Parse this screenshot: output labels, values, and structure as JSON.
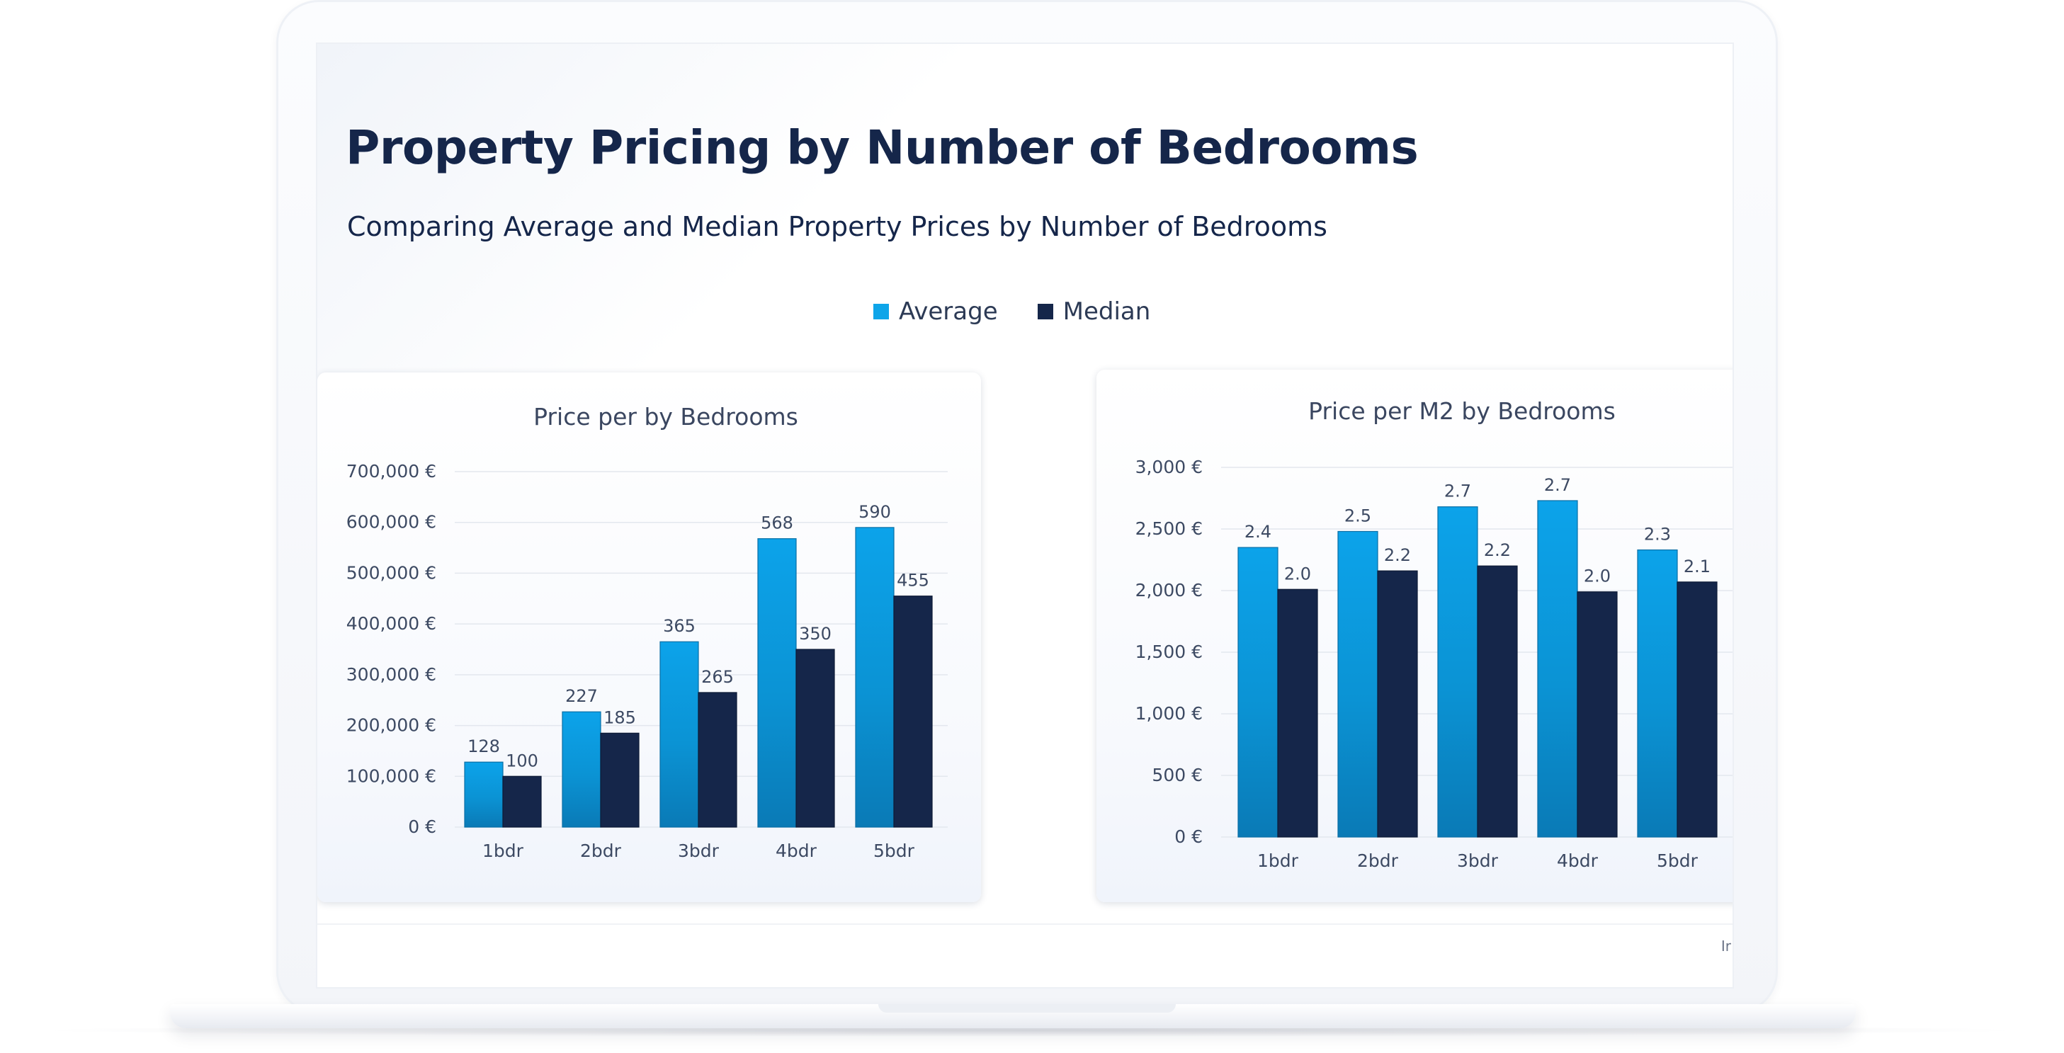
{
  "page": {
    "title": "Property Pricing by Number of Bedrooms",
    "subtitle": "Comparing Average and Median Property Prices by Number of Bedrooms",
    "footer_text": "Ir"
  },
  "legend": {
    "items": [
      {
        "label": "Average",
        "color": "#0ea5e9"
      },
      {
        "label": "Median",
        "color": "#15264a"
      }
    ]
  },
  "colors": {
    "average_top": "#0ca3ea",
    "average_bottom": "#0a7ab6",
    "median": "#15264a",
    "title": "#15264a"
  },
  "chart_data": [
    {
      "type": "bar",
      "title": "Price per by Bedrooms",
      "categories": [
        "1bdr",
        "2bdr",
        "3bdr",
        "4bdr",
        "5bdr"
      ],
      "series": [
        {
          "name": "Average",
          "values": [
            128000,
            227000,
            365000,
            568000,
            590000
          ],
          "labels": [
            "128",
            "227",
            "365",
            "568",
            "590"
          ]
        },
        {
          "name": "Median",
          "values": [
            100000,
            185000,
            265000,
            350000,
            455000
          ],
          "labels": [
            "100",
            "185",
            "265",
            "350",
            "455"
          ]
        }
      ],
      "ylim": [
        0,
        700000
      ],
      "yticks": [
        0,
        100000,
        200000,
        300000,
        400000,
        500000,
        600000,
        700000
      ],
      "ytick_labels": [
        "0 €",
        "100,000 €",
        "200,000 €",
        "300,000 €",
        "400,000 €",
        "500,000 €",
        "600,000 €",
        "700,000 €"
      ],
      "grid": true
    },
    {
      "type": "bar",
      "title": "Price per M2 by Bedrooms",
      "categories": [
        "1bdr",
        "2bdr",
        "3bdr",
        "4bdr",
        "5bdr"
      ],
      "series": [
        {
          "name": "Average",
          "values": [
            2350,
            2480,
            2680,
            2730,
            2330
          ],
          "labels": [
            "2.4",
            "2.5",
            "2.7",
            "2.7",
            "2.3"
          ]
        },
        {
          "name": "Median",
          "values": [
            2010,
            2160,
            2200,
            1990,
            2070
          ],
          "labels": [
            "2.0",
            "2.2",
            "2.2",
            "2.0",
            "2.1"
          ]
        }
      ],
      "ylim": [
        0,
        3000
      ],
      "yticks": [
        0,
        500,
        1000,
        1500,
        2000,
        2500,
        3000
      ],
      "ytick_labels": [
        "0 €",
        "500 €",
        "1,000 €",
        "1,500 €",
        "2,000 €",
        "2,500 €",
        "3,000 €"
      ],
      "grid": true
    }
  ]
}
